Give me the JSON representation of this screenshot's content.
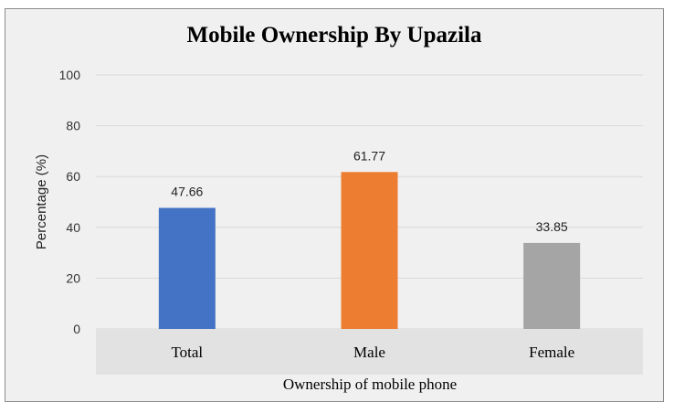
{
  "chart_data": {
    "type": "bar",
    "title": "Mobile Ownership By Upazila",
    "xlabel": "Ownership of mobile phone",
    "ylabel": "Percentage (%)",
    "categories": [
      "Total",
      "Male",
      "Female"
    ],
    "values": [
      47.66,
      61.77,
      33.85
    ],
    "value_labels": [
      "47.66",
      "61.77",
      "33.85"
    ],
    "bar_colors": [
      "#4472c4",
      "#ed7d31",
      "#a5a5a5"
    ],
    "ylim": [
      0,
      100
    ],
    "yticks": [
      0,
      20,
      40,
      60,
      80,
      100
    ],
    "ytick_labels": [
      "0",
      "20",
      "40",
      "60",
      "80",
      "100"
    ],
    "grid": true,
    "legend": "none",
    "colors": {
      "background": "#f0f0f0",
      "gridline": "#d9d9d9",
      "axis_band": "#e2e2e2",
      "border": "#8c8c8c"
    }
  }
}
